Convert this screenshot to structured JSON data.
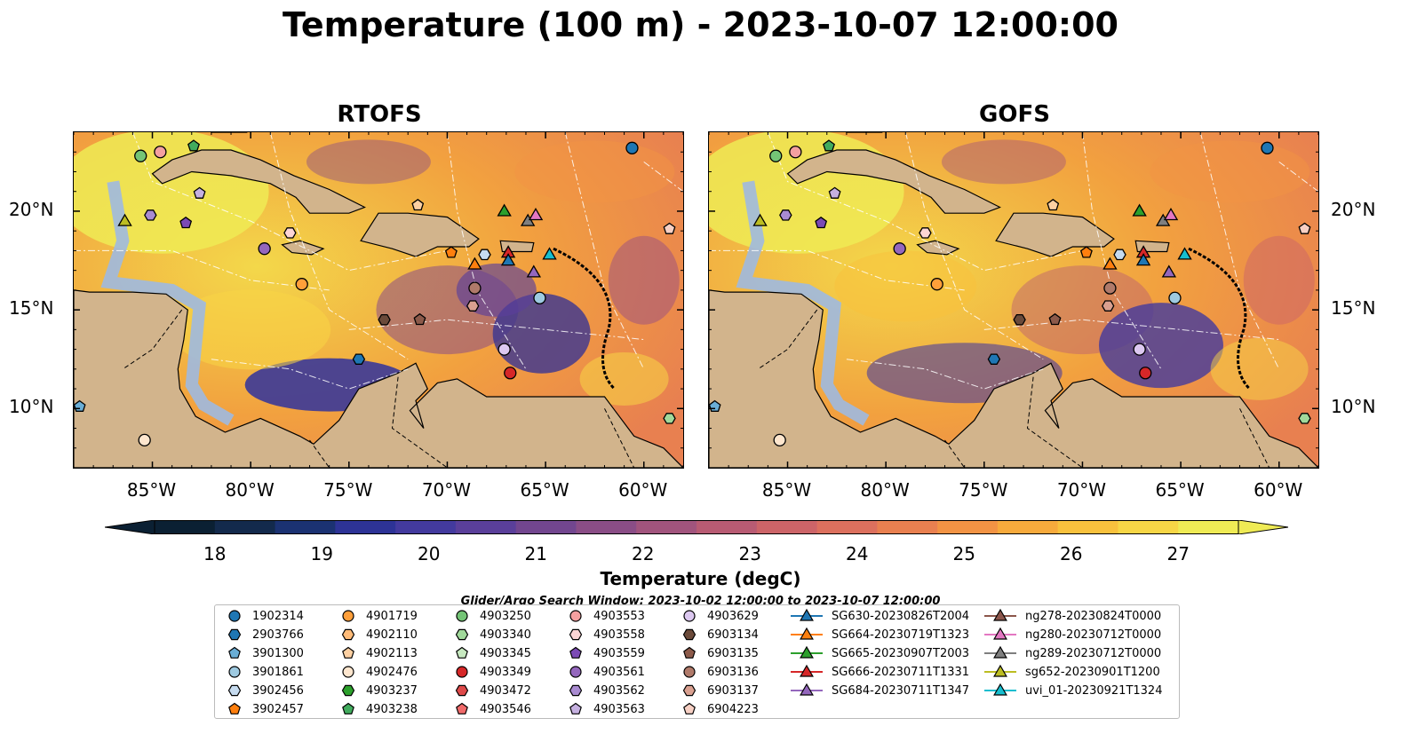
{
  "title": "Temperature (100 m) - 2023-10-07 12:00:00",
  "panels": [
    {
      "title": "RTOFS"
    },
    {
      "title": "GOFS"
    }
  ],
  "axes": {
    "lon_labels": [
      "85°W",
      "80°W",
      "75°W",
      "70°W",
      "65°W",
      "60°W"
    ],
    "lat_labels": [
      "20°N",
      "15°N",
      "10°N"
    ],
    "lon_range": [
      -89,
      -58
    ],
    "lat_range": [
      7,
      24
    ]
  },
  "colorbar": {
    "title": "Temperature (degC)",
    "ticks": [
      "18",
      "19",
      "20",
      "21",
      "22",
      "23",
      "24",
      "25",
      "26",
      "27"
    ],
    "range": [
      18,
      27
    ],
    "extend": "both",
    "colors": [
      "#0b2033",
      "#132a4c",
      "#1b3272",
      "#2d3396",
      "#433a9e",
      "#5a3f9a",
      "#72468f",
      "#8a4d86",
      "#a1547d",
      "#b85b73",
      "#cc6468",
      "#dc705e",
      "#e98050",
      "#f29344",
      "#f7aa3c",
      "#f8c13d",
      "#f7d646",
      "#efeb55"
    ]
  },
  "search_window": "Glider/Argo Search Window: 2023-10-02 12:00:00 to 2023-10-07 12:00:00",
  "legend": [
    {
      "label": "1902314",
      "marker": "circle",
      "color": "#1f77b4"
    },
    {
      "label": "2903766",
      "marker": "hexagon",
      "color": "#1f77b4"
    },
    {
      "label": "3901300",
      "marker": "pentagon",
      "color": "#6aaed6"
    },
    {
      "label": "3901861",
      "marker": "circle",
      "color": "#9ecae1"
    },
    {
      "label": "3902456",
      "marker": "hexagon",
      "color": "#c6dbef"
    },
    {
      "label": "3902457",
      "marker": "pentagon",
      "color": "#ff7f0e"
    },
    {
      "label": "4901719",
      "marker": "circle",
      "color": "#ff9f3a"
    },
    {
      "label": "4902110",
      "marker": "hexagon",
      "color": "#ffbb78"
    },
    {
      "label": "4902113",
      "marker": "pentagon",
      "color": "#fdd0a2"
    },
    {
      "label": "4902476",
      "marker": "circle",
      "color": "#fee6ce"
    },
    {
      "label": "4903237",
      "marker": "hexagon",
      "color": "#2ca02c"
    },
    {
      "label": "4903238",
      "marker": "pentagon",
      "color": "#41ab5d"
    },
    {
      "label": "4903250",
      "marker": "circle",
      "color": "#74c476"
    },
    {
      "label": "4903340",
      "marker": "hexagon",
      "color": "#a1d99b"
    },
    {
      "label": "4903345",
      "marker": "pentagon",
      "color": "#c7e9c0"
    },
    {
      "label": "4903349",
      "marker": "circle",
      "color": "#d62728"
    },
    {
      "label": "4903472",
      "marker": "hexagon",
      "color": "#de4a4a"
    },
    {
      "label": "4903546",
      "marker": "pentagon",
      "color": "#f06a6a"
    },
    {
      "label": "4903553",
      "marker": "circle",
      "color": "#f4a0a0"
    },
    {
      "label": "4903558",
      "marker": "hexagon",
      "color": "#fcd5d5"
    },
    {
      "label": "4903559",
      "marker": "pentagon",
      "color": "#7b4ab5"
    },
    {
      "label": "4903561",
      "marker": "circle",
      "color": "#9467bd"
    },
    {
      "label": "4903562",
      "marker": "hexagon",
      "color": "#a98bd1"
    },
    {
      "label": "4903563",
      "marker": "pentagon",
      "color": "#c5b0e0"
    },
    {
      "label": "4903629",
      "marker": "circle",
      "color": "#dcc8f0"
    },
    {
      "label": "6903134",
      "marker": "hexagon",
      "color": "#6b4a3a"
    },
    {
      "label": "6903135",
      "marker": "pentagon",
      "color": "#8c5a4a"
    },
    {
      "label": "6903136",
      "marker": "circle",
      "color": "#b07a6a"
    },
    {
      "label": "6903137",
      "marker": "hexagon",
      "color": "#d9a090"
    },
    {
      "label": "6904223",
      "marker": "pentagon",
      "color": "#f7d0c4"
    },
    {
      "label": "SG630-20230826T2004",
      "marker": "triangle",
      "color": "#1f77b4"
    },
    {
      "label": "SG664-20230719T1323",
      "marker": "triangle",
      "color": "#ff7f0e"
    },
    {
      "label": "SG665-20230907T2003",
      "marker": "triangle",
      "color": "#2ca02c"
    },
    {
      "label": "SG666-20230711T1331",
      "marker": "triangle",
      "color": "#d62728"
    },
    {
      "label": "SG684-20230711T1347",
      "marker": "triangle",
      "color": "#9467bd"
    },
    {
      "label": "ng278-20230824T0000",
      "marker": "triangle",
      "color": "#8c564b"
    },
    {
      "label": "ng280-20230712T0000",
      "marker": "triangle",
      "color": "#e377c2"
    },
    {
      "label": "ng289-20230712T0000",
      "marker": "triangle",
      "color": "#7f7f7f"
    },
    {
      "label": "sg652-20230901T1200",
      "marker": "triangle",
      "color": "#bcbd22"
    },
    {
      "label": "uvi_01-20230921T1324",
      "marker": "triangle",
      "color": "#17becf"
    }
  ],
  "observations": [
    {
      "id": "1902314",
      "lon": -60.6,
      "lat": 23.2
    },
    {
      "id": "4903250",
      "lon": -85.6,
      "lat": 22.8
    },
    {
      "id": "4903553",
      "lon": -84.6,
      "lat": 23.0
    },
    {
      "id": "4903238",
      "lon": -82.9,
      "lat": 23.3
    },
    {
      "id": "4903563",
      "lon": -82.6,
      "lat": 20.9
    },
    {
      "id": "sg652-20230901T1200",
      "lon": -86.4,
      "lat": 19.5
    },
    {
      "id": "4903562",
      "lon": -85.1,
      "lat": 19.8
    },
    {
      "id": "4903559",
      "lon": -83.3,
      "lat": 19.4
    },
    {
      "id": "4903561",
      "lon": -79.3,
      "lat": 18.1
    },
    {
      "id": "4903558",
      "lon": -78.0,
      "lat": 18.9
    },
    {
      "id": "4902113",
      "lon": -71.5,
      "lat": 20.3
    },
    {
      "id": "6904223",
      "lon": -58.7,
      "lat": 19.1
    },
    {
      "id": "SG665-20230907T2003",
      "lon": -67.1,
      "lat": 20.0
    },
    {
      "id": "ng289-20230712T0000",
      "lon": -65.9,
      "lat": 19.5
    },
    {
      "id": "ng280-20230712T0000",
      "lon": -65.5,
      "lat": 19.8
    },
    {
      "id": "3902457",
      "lon": -69.8,
      "lat": 17.9
    },
    {
      "id": "3902456",
      "lon": -68.1,
      "lat": 17.8
    },
    {
      "id": "SG664-20230719T1323",
      "lon": -68.6,
      "lat": 17.3
    },
    {
      "id": "SG666-20230711T1331",
      "lon": -66.9,
      "lat": 17.9
    },
    {
      "id": "SG630-20230826T2004",
      "lon": -66.9,
      "lat": 17.5
    },
    {
      "id": "uvi_01-20230921T1324",
      "lon": -64.8,
      "lat": 17.8
    },
    {
      "id": "SG684-20230711T1347",
      "lon": -65.6,
      "lat": 16.9
    },
    {
      "id": "4901719",
      "lon": -77.4,
      "lat": 16.3
    },
    {
      "id": "6903136",
      "lon": -68.6,
      "lat": 16.1
    },
    {
      "id": "6903137",
      "lon": -68.7,
      "lat": 15.2
    },
    {
      "id": "3901861",
      "lon": -65.3,
      "lat": 15.6
    },
    {
      "id": "6903134",
      "lon": -73.2,
      "lat": 14.5
    },
    {
      "id": "6903135",
      "lon": -71.4,
      "lat": 14.5
    },
    {
      "id": "2903766",
      "lon": -74.5,
      "lat": 12.5
    },
    {
      "id": "4903629",
      "lon": -67.1,
      "lat": 13.0
    },
    {
      "id": "4903349",
      "lon": -66.8,
      "lat": 11.8
    },
    {
      "id": "3901300",
      "lon": -88.7,
      "lat": 10.1
    },
    {
      "id": "4903340",
      "lon": -58.7,
      "lat": 9.5
    },
    {
      "id": "4902476",
      "lon": -85.4,
      "lat": 8.4
    }
  ]
}
